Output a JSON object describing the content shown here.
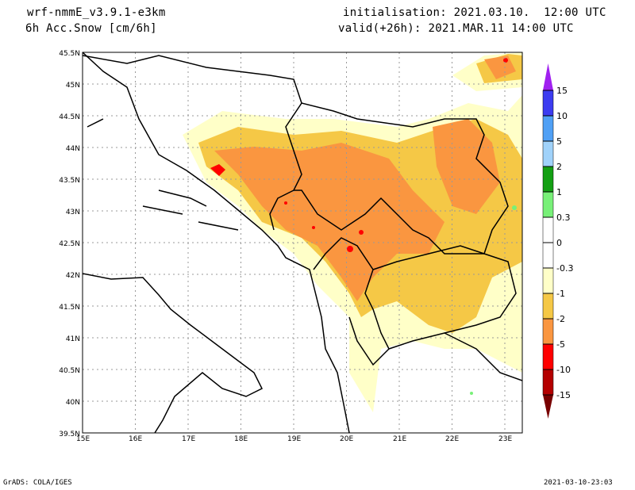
{
  "header": {
    "model": "wrf-nmmE_v3.9.1-e3km",
    "field": "6h Acc.Snow [cm/6h]",
    "init": "initialisation: 2021.03.10.  12:00 UTC",
    "valid": "valid(+26h): 2021.MAR.11 14:00 UTC"
  },
  "footer": {
    "left": "GrADS: COLA/IGES",
    "right": "2021-03-10-23:03"
  },
  "map": {
    "lon_range": [
      15,
      23.33
    ],
    "lat_range": [
      39.5,
      45.5
    ],
    "lon_ticks": [
      "15E",
      "16E",
      "17E",
      "18E",
      "19E",
      "20E",
      "21E",
      "22E",
      "23E"
    ],
    "lat_ticks": [
      "45.5N",
      "45N",
      "44.5N",
      "44N",
      "43.5N",
      "43N",
      "42.5N",
      "42N",
      "41.5N",
      "41N",
      "40.5N",
      "40N",
      "39.5N"
    ]
  },
  "colorbar": {
    "labels": [
      "15",
      "10",
      "5",
      "2",
      "1",
      "0.3",
      "0",
      "-0.3",
      "-1",
      "-2",
      "-5",
      "-10",
      "-15"
    ],
    "colors": [
      "#3c3cf0",
      "#50a0f5",
      "#a0d2fa",
      "#14a014",
      "#78f078",
      "#ffffff",
      "#ffffff",
      "#ffffc8",
      "#f5c846",
      "#fa9640",
      "#ff0000",
      "#b40000"
    ],
    "top_arrow": "#a020f0",
    "bottom_arrow": "#780000"
  }
}
